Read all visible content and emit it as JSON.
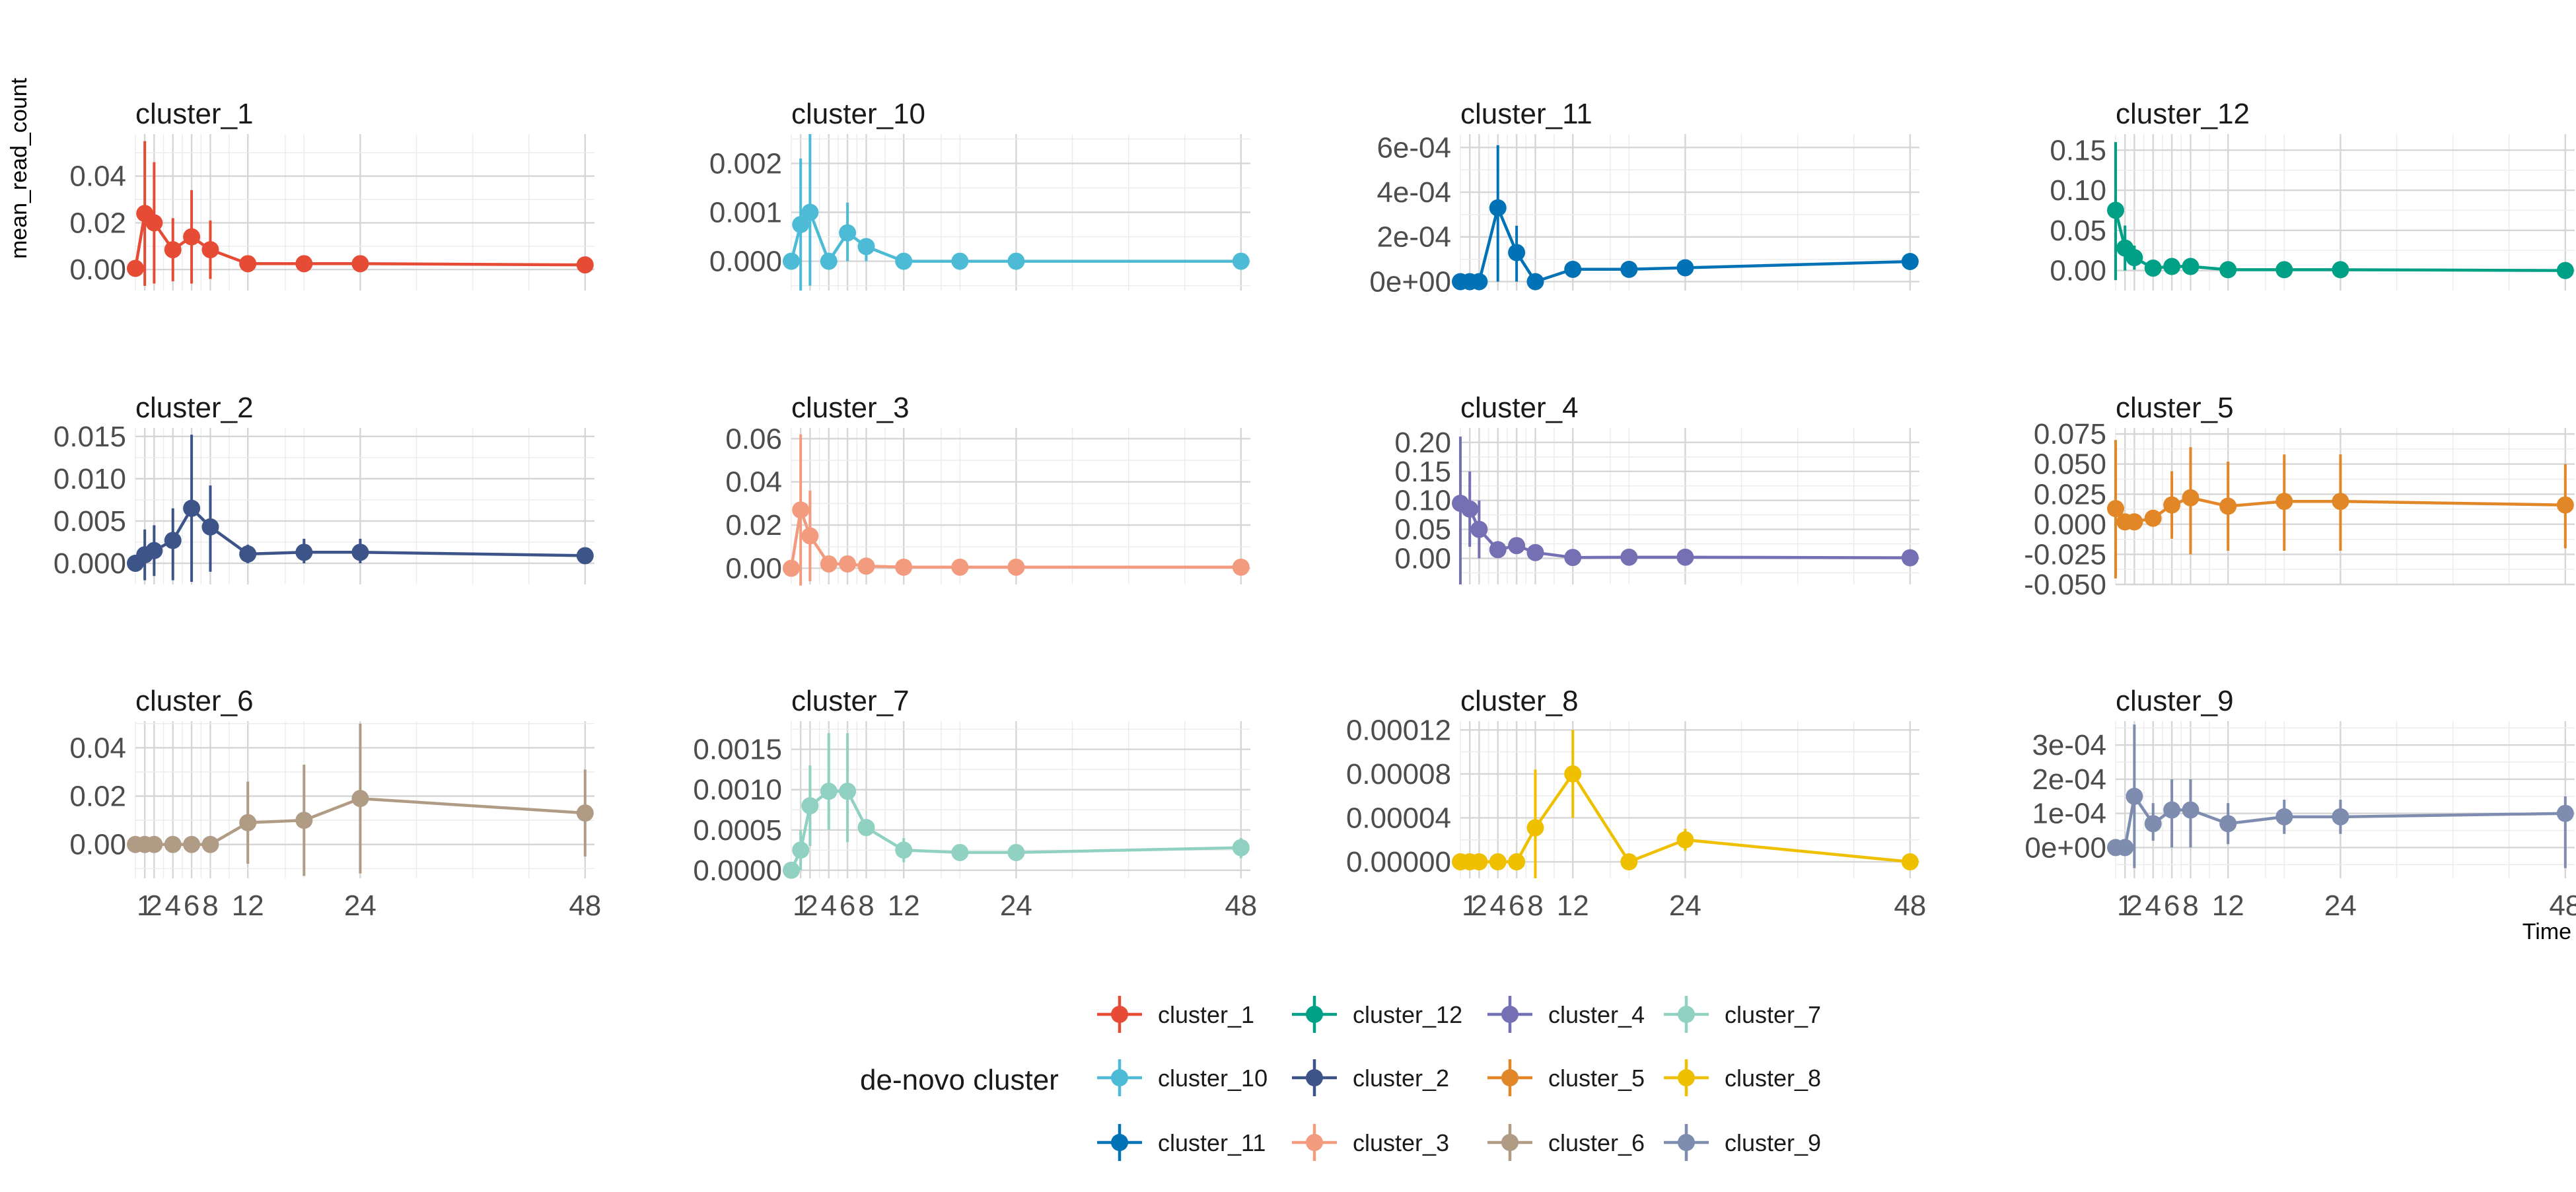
{
  "chart_data": {
    "type": "line",
    "facet_layout": "4 columns x 3 rows, independent y scales",
    "xlabel": "Time",
    "ylabel": "mean_read_count",
    "legend": {
      "title": "de-novo cluster",
      "position": "bottom"
    },
    "x_ticks": [
      1,
      2,
      4,
      6,
      8,
      12,
      24,
      48
    ],
    "x_tick_labels": [
      "1",
      "2",
      "4",
      "6",
      "8",
      "12",
      "24",
      "48"
    ],
    "x_range": [
      0,
      49
    ],
    "x_grid_lines": [
      0,
      1,
      2,
      3,
      4,
      5,
      6,
      7,
      8,
      10,
      12,
      16,
      18,
      24,
      30,
      36,
      42,
      48
    ],
    "x": [
      0,
      1,
      2,
      4,
      6,
      8,
      12,
      18,
      24,
      48
    ],
    "grid": true,
    "error_bars": "vertical lines showing the spread around each mean",
    "panels": [
      {
        "name": "cluster_1",
        "color": "#E64B35",
        "ylim": [
          -0.009,
          0.058
        ],
        "y_ticks": [
          0,
          0.02,
          0.04
        ],
        "y_tick_labels": [
          "0.00",
          "0.02",
          "0.04"
        ],
        "values": [
          0.0005,
          0.024,
          0.02,
          0.0085,
          0.014,
          0.0085,
          0.0025,
          0.0025,
          0.0025,
          0.002
        ],
        "err_low": [
          0.0005,
          -0.007,
          -0.006,
          -0.005,
          -0.006,
          -0.004,
          -0.001,
          0.0025,
          0.0025,
          0.002
        ],
        "err_high": [
          0.0005,
          0.055,
          0.046,
          0.022,
          0.034,
          0.021,
          0.0055,
          0.0025,
          0.0025,
          0.002
        ]
      },
      {
        "name": "cluster_10",
        "color": "#4DBBD5",
        "ylim": [
          -0.0006,
          0.0026
        ],
        "y_ticks": [
          0,
          0.001,
          0.002
        ],
        "y_tick_labels": [
          "0.000",
          "0.001",
          "0.002"
        ],
        "values": [
          0.0,
          0.00075,
          0.001,
          0.0,
          0.00058,
          0.0003,
          0.0,
          0.0,
          0.0,
          0.0
        ],
        "err_low": [
          0.0,
          -0.0006,
          -0.0005,
          0.0,
          0.0,
          0.0,
          0.0,
          0.0,
          0.0,
          0.0
        ],
        "err_high": [
          0.0,
          0.0021,
          0.0026,
          0.0,
          0.0012,
          0.0003,
          0.0,
          0.0,
          0.0,
          0.0
        ]
      },
      {
        "name": "cluster_11",
        "color": "#0072B5",
        "ylim": [
          -4e-05,
          0.00066
        ],
        "y_ticks": [
          0,
          0.0002,
          0.0004,
          0.0006
        ],
        "y_tick_labels": [
          "0e+00",
          "2e-04",
          "4e-04",
          "6e-04"
        ],
        "values": [
          0.0,
          0.0,
          0.0,
          0.00033,
          0.00013,
          0.0,
          5.5e-05,
          5.5e-05,
          6.2e-05,
          9e-05
        ],
        "err_low": [
          0.0,
          0.0,
          0.0,
          0.0,
          0.0,
          0.0,
          5.5e-05,
          5.5e-05,
          6.2e-05,
          9e-05
        ],
        "err_high": [
          0.0,
          0.0,
          0.0,
          0.00061,
          0.00025,
          0.0,
          5.5e-05,
          5.5e-05,
          6.2e-05,
          9e-05
        ]
      },
      {
        "name": "cluster_12",
        "color": "#00A087",
        "ylim": [
          -0.025,
          0.17
        ],
        "y_ticks": [
          0,
          0.05,
          0.1,
          0.15
        ],
        "y_tick_labels": [
          "0.00",
          "0.05",
          "0.10",
          "0.15"
        ],
        "values": [
          0.075,
          0.028,
          0.016,
          0.003,
          0.005,
          0.005,
          0.001,
          0.001,
          0.001,
          0.0
        ],
        "err_low": [
          -0.012,
          0.0,
          0.001,
          0.001,
          0.002,
          0.003,
          0.001,
          0.001,
          0.001,
          0.0
        ],
        "err_high": [
          0.16,
          0.056,
          0.031,
          0.005,
          0.008,
          0.007,
          0.001,
          0.001,
          0.001,
          0.0
        ]
      },
      {
        "name": "cluster_2",
        "color": "#3C5488",
        "ylim": [
          -0.0025,
          0.016
        ],
        "y_ticks": [
          0,
          0.005,
          0.01,
          0.015
        ],
        "y_tick_labels": [
          "0.000",
          "0.005",
          "0.010",
          "0.015"
        ],
        "values": [
          0.0,
          0.001,
          0.0015,
          0.0027,
          0.0065,
          0.0043,
          0.0011,
          0.0013,
          0.0013,
          0.0009
        ],
        "err_low": [
          0.0,
          -0.002,
          -0.0015,
          -0.002,
          -0.0022,
          -0.001,
          0.0,
          0.0,
          0.0,
          0.0009
        ],
        "err_high": [
          0.0,
          0.004,
          0.0045,
          0.0065,
          0.0152,
          0.0092,
          0.0022,
          0.0029,
          0.0029,
          0.0009
        ]
      },
      {
        "name": "cluster_3",
        "color": "#F39B7F",
        "ylim": [
          -0.0075,
          0.065
        ],
        "y_ticks": [
          0,
          0.02,
          0.04,
          0.06
        ],
        "y_tick_labels": [
          "0.00",
          "0.02",
          "0.04",
          "0.06"
        ],
        "values": [
          0.0,
          0.027,
          0.015,
          0.002,
          0.002,
          0.001,
          0.0005,
          0.0005,
          0.0005,
          0.0005
        ],
        "err_low": [
          0.0,
          -0.008,
          -0.006,
          0.002,
          0.002,
          0.001,
          0.0005,
          0.0005,
          0.0005,
          0.0005
        ],
        "err_high": [
          0.0,
          0.062,
          0.036,
          0.002,
          0.002,
          0.001,
          0.0005,
          0.0005,
          0.0005,
          0.0005
        ]
      },
      {
        "name": "cluster_4",
        "color": "#7570B3",
        "ylim": [
          -0.045,
          0.225
        ],
        "y_ticks": [
          0,
          0.05,
          0.1,
          0.15,
          0.2
        ],
        "y_tick_labels": [
          "0.00",
          "0.05",
          "0.10",
          "0.15",
          "0.20"
        ],
        "values": [
          0.095,
          0.085,
          0.05,
          0.015,
          0.022,
          0.01,
          0.0015,
          0.002,
          0.002,
          0.001
        ],
        "err_low": [
          -0.045,
          0.02,
          0.0,
          0.005,
          0.01,
          0.008,
          0.0015,
          0.002,
          0.002,
          0.001
        ],
        "err_high": [
          0.21,
          0.15,
          0.1,
          0.025,
          0.034,
          0.012,
          0.0015,
          0.002,
          0.002,
          0.001
        ]
      },
      {
        "name": "cluster_5",
        "color": "#E18727",
        "ylim": [
          -0.05,
          0.08
        ],
        "y_ticks": [
          -0.05,
          -0.025,
          0,
          0.025,
          0.05,
          0.075
        ],
        "y_tick_labels": [
          "-0.050",
          "-0.025",
          "0.000",
          "0.025",
          "0.050",
          "0.075"
        ],
        "values": [
          0.013,
          0.002,
          0.002,
          0.005,
          0.016,
          0.022,
          0.015,
          0.019,
          0.019,
          0.016
        ],
        "err_low": [
          -0.045,
          0.002,
          0.002,
          0.0,
          -0.012,
          -0.025,
          -0.022,
          -0.022,
          -0.022,
          -0.02
        ],
        "err_high": [
          0.07,
          0.002,
          0.002,
          0.011,
          0.044,
          0.064,
          0.052,
          0.058,
          0.058,
          0.05
        ]
      },
      {
        "name": "cluster_6",
        "color": "#B09C85",
        "ylim": [
          -0.014,
          0.051
        ],
        "y_ticks": [
          0,
          0.02,
          0.04
        ],
        "y_tick_labels": [
          "0.00",
          "0.02",
          "0.04"
        ],
        "values": [
          0.0,
          0.0,
          0.0,
          0.0,
          0.0,
          0.0,
          0.009,
          0.01,
          0.019,
          0.013
        ],
        "err_low": [
          0.0,
          0.0,
          0.0,
          0.0,
          0.0,
          0.0,
          -0.008,
          -0.013,
          -0.012,
          -0.005
        ],
        "err_high": [
          0.0,
          0.0,
          0.0,
          0.0,
          0.0,
          0.0,
          0.026,
          0.033,
          0.05,
          0.031
        ]
      },
      {
        "name": "cluster_7",
        "color": "#91D1C2",
        "ylim": [
          -0.0001,
          0.00185
        ],
        "y_ticks": [
          0,
          0.0005,
          0.001,
          0.0015
        ],
        "y_tick_labels": [
          "0.0000",
          "0.0005",
          "0.0010",
          "0.0015"
        ],
        "values": [
          0.0,
          0.00025,
          0.0008,
          0.00098,
          0.00098,
          0.00053,
          0.00025,
          0.00022,
          0.00022,
          0.00028
        ],
        "err_low": [
          0.0,
          0.0,
          0.0003,
          0.0005,
          0.00035,
          0.00053,
          0.0001,
          0.00022,
          0.00022,
          0.00015
        ],
        "err_high": [
          0.0,
          0.0005,
          0.0013,
          0.0017,
          0.0017,
          0.00053,
          0.0004,
          0.00022,
          0.00022,
          0.0004
        ]
      },
      {
        "name": "cluster_8",
        "color": "#EFC000",
        "ylim": [
          -1.5e-05,
          0.000128
        ],
        "y_ticks": [
          0,
          4e-05,
          8e-05,
          0.00012
        ],
        "y_tick_labels": [
          "0.00000",
          "0.00004",
          "0.00008",
          "0.00012"
        ],
        "values": [
          0.0,
          0.0,
          0.0,
          0.0,
          0.0,
          3.1e-05,
          8e-05,
          0.0,
          2e-05,
          0.0
        ],
        "err_low": [
          0.0,
          0.0,
          0.0,
          0.0,
          0.0,
          -1.5e-05,
          4e-05,
          0.0,
          1e-05,
          0.0
        ],
        "err_high": [
          0.0,
          0.0,
          0.0,
          0.0,
          0.0,
          8.4e-05,
          0.00012,
          0.0,
          3e-05,
          0.0
        ]
      },
      {
        "name": "cluster_9",
        "color": "#7E8CB0",
        "ylim": [
          -9e-05,
          0.00037
        ],
        "y_ticks": [
          0,
          0.0001,
          0.0002,
          0.0003
        ],
        "y_tick_labels": [
          "0e+00",
          "1e-04",
          "2e-04",
          "3e-04"
        ],
        "values": [
          0.0,
          0.0,
          0.00015,
          7e-05,
          0.00011,
          0.00011,
          7e-05,
          9e-05,
          9e-05,
          0.0001
        ],
        "err_low": [
          0.0,
          0.0,
          -6e-05,
          2e-05,
          0.0,
          0.0,
          1e-05,
          4e-05,
          4e-05,
          -6e-05
        ],
        "err_high": [
          0.0,
          0.0,
          0.00036,
          0.00013,
          0.0002,
          0.0002,
          0.00013,
          0.00014,
          0.00014,
          0.00015
        ]
      }
    ],
    "legend_entries": [
      {
        "name": "cluster_1",
        "color": "#E64B35"
      },
      {
        "name": "cluster_10",
        "color": "#4DBBD5"
      },
      {
        "name": "cluster_11",
        "color": "#0072B5"
      },
      {
        "name": "cluster_12",
        "color": "#00A087"
      },
      {
        "name": "cluster_2",
        "color": "#3C5488"
      },
      {
        "name": "cluster_3",
        "color": "#F39B7F"
      },
      {
        "name": "cluster_4",
        "color": "#7570B3"
      },
      {
        "name": "cluster_5",
        "color": "#E18727"
      },
      {
        "name": "cluster_6",
        "color": "#B09C85"
      },
      {
        "name": "cluster_7",
        "color": "#91D1C2"
      },
      {
        "name": "cluster_8",
        "color": "#EFC000"
      },
      {
        "name": "cluster_9",
        "color": "#7E8CB0"
      }
    ]
  }
}
